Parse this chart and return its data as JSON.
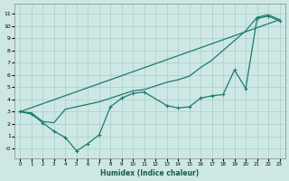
{
  "xlabel": "Humidex (Indice chaleur)",
  "bg_color": "#cde8e4",
  "line_color": "#1a7a6e",
  "grid_color": "#aaccc8",
  "xlim": [
    -0.5,
    23.5
  ],
  "ylim": [
    -0.8,
    11.8
  ],
  "xticks": [
    0,
    1,
    2,
    3,
    4,
    5,
    6,
    7,
    8,
    9,
    10,
    11,
    12,
    13,
    14,
    15,
    16,
    17,
    18,
    19,
    20,
    21,
    22,
    23
  ],
  "yticks": [
    0,
    1,
    2,
    3,
    4,
    5,
    6,
    7,
    8,
    9,
    10,
    11
  ],
  "ytick_labels": [
    "-0",
    "1",
    "2",
    "3",
    "4",
    "5",
    "6",
    "7",
    "8",
    "9",
    "10",
    "11"
  ],
  "straight_line": {
    "x": [
      0,
      23
    ],
    "y": [
      3.0,
      10.5
    ]
  },
  "upper_line": {
    "x": [
      0,
      1,
      2,
      3,
      4,
      5,
      6,
      7,
      8,
      9,
      10,
      11,
      12,
      13,
      14,
      15,
      16,
      17,
      18,
      19,
      20,
      21,
      22,
      23
    ],
    "y": [
      3.0,
      2.9,
      2.2,
      2.1,
      3.2,
      3.4,
      3.6,
      3.8,
      4.1,
      4.4,
      4.7,
      4.8,
      5.1,
      5.4,
      5.6,
      5.9,
      6.6,
      7.2,
      8.0,
      8.8,
      9.6,
      10.7,
      10.9,
      10.5
    ]
  },
  "lower_line": {
    "x": [
      0,
      1,
      2,
      3,
      4,
      5,
      6,
      7,
      8,
      9,
      10,
      11,
      13,
      14,
      15,
      16,
      17,
      18,
      19,
      20,
      21,
      22,
      23
    ],
    "y": [
      3.0,
      2.8,
      2.1,
      1.4,
      0.9,
      -0.2,
      0.4,
      1.1,
      3.4,
      4.1,
      4.5,
      4.6,
      3.5,
      3.3,
      3.4,
      4.1,
      4.3,
      4.4,
      6.4,
      4.9,
      10.6,
      10.8,
      10.4
    ]
  }
}
